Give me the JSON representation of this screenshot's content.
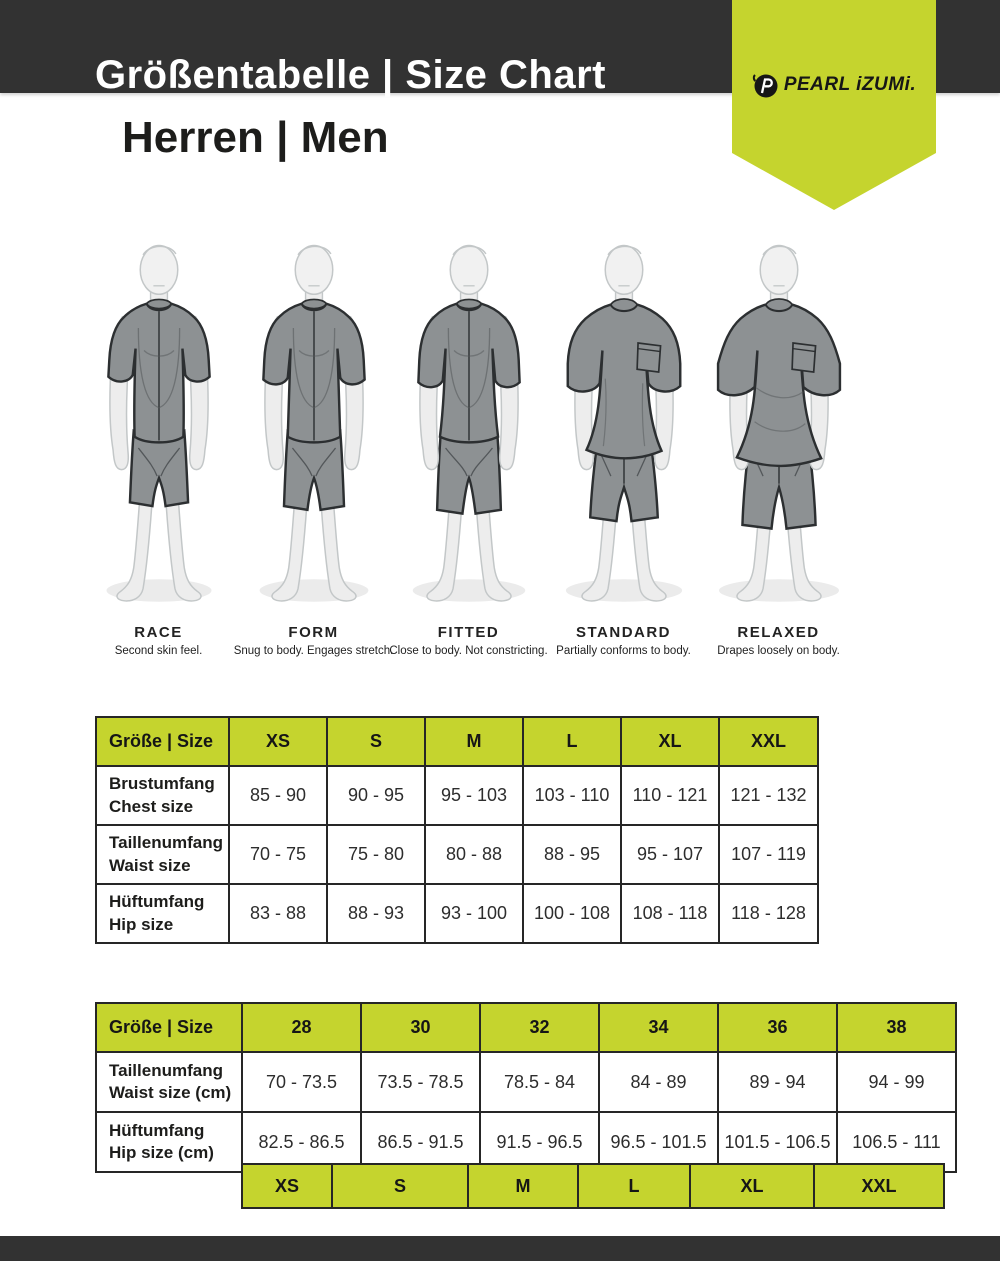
{
  "header": {
    "title": "Größentabelle | Size Chart",
    "subtitle": "Herren | Men",
    "brand": "PEARL iZUMi.",
    "accent_color": "#c5d42e",
    "bar_color": "#323232"
  },
  "fits": [
    {
      "name": "RACE",
      "description": "Second skin feel."
    },
    {
      "name": "FORM",
      "description": "Snug to body. Engages stretch."
    },
    {
      "name": "FITTED",
      "description": "Close to body. Not constricting."
    },
    {
      "name": "STANDARD",
      "description": "Partially conforms to body."
    },
    {
      "name": "RELAXED",
      "description": "Drapes loosely on body."
    }
  ],
  "size_table": {
    "header": [
      "Größe | Size",
      "XS",
      "S",
      "M",
      "L",
      "XL",
      "XXL"
    ],
    "rows": [
      {
        "label_de": "Brustumfang",
        "label_en": "Chest size",
        "values": [
          "85 - 90",
          "90 - 95",
          "95 - 103",
          "103 - 110",
          "110 - 121",
          "121 - 132"
        ]
      },
      {
        "label_de": "Taillenumfang",
        "label_en": "Waist size",
        "values": [
          "70 - 75",
          "75 - 80",
          "80 - 88",
          "88 - 95",
          "95 - 107",
          "107 - 119"
        ]
      },
      {
        "label_de": "Hüftumfang",
        "label_en": "Hip size",
        "values": [
          "83 - 88",
          "88 - 93",
          "93 - 100",
          "100 - 108",
          "108 - 118",
          "118 - 128"
        ]
      }
    ]
  },
  "pants_table": {
    "header": [
      "Größe | Size",
      "28",
      "30",
      "32",
      "34",
      "36",
      "38"
    ],
    "rows": [
      {
        "label_de": "Taillenumfang",
        "label_en": "Waist size (cm)",
        "values": [
          "70 - 73.5",
          "73.5 - 78.5",
          "78.5 - 84",
          "84 - 89",
          "89 - 94",
          "94 - 99"
        ]
      },
      {
        "label_de": "Hüftumfang",
        "label_en": "Hip size (cm)",
        "values": [
          "82.5 - 86.5",
          "86.5 - 91.5",
          "91.5 - 96.5",
          "96.5 - 101.5",
          "101.5 - 106.5",
          "106.5 - 111"
        ]
      }
    ],
    "size_equivalents": [
      "XS",
      "S",
      "M",
      "L",
      "XL",
      "XXL"
    ]
  }
}
